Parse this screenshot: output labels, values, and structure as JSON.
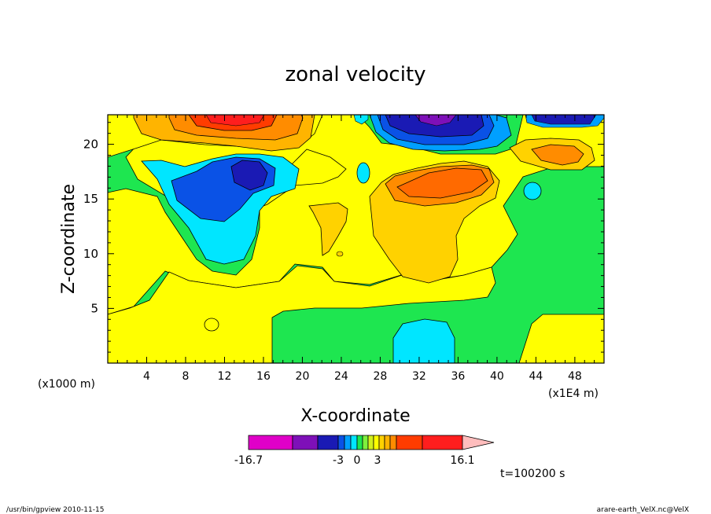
{
  "chart_data": {
    "type": "heatmap",
    "title": "zonal velocity",
    "xlabel": "X-coordinate",
    "ylabel": "Z-coordinate",
    "x_unit_note": "(x1000 m)",
    "x_scale_note": "(x1E4 m)",
    "x_ticks": [
      4,
      8,
      12,
      16,
      20,
      24,
      28,
      32,
      36,
      40,
      44,
      48
    ],
    "y_ticks": [
      5,
      10,
      15,
      20
    ],
    "xlim": [
      0,
      51
    ],
    "ylim": [
      0,
      22.7
    ],
    "grid": false,
    "colorbar": {
      "colors": [
        "#e000c8",
        "#7e10b8",
        "#1a1ab4",
        "#0a52e6",
        "#00a0ff",
        "#00e6ff",
        "#1ee650",
        "#7ef03c",
        "#d2f01e",
        "#ffff00",
        "#ffd200",
        "#ffb400",
        "#ff8c00",
        "#ff3c00",
        "#ff1e1e",
        "#ff8080",
        "#ffbdbd"
      ],
      "tick_labels": [
        "-16.7",
        "-3",
        "0",
        "3",
        "16.1"
      ],
      "min": -16.7,
      "max": 16.1
    },
    "regions": [
      {
        "x": 10,
        "z": 21.5,
        "value": 6
      },
      {
        "x": 12,
        "z": 22,
        "value": 12
      },
      {
        "x": 32,
        "z": 21.5,
        "value": -10
      },
      {
        "x": 34,
        "z": 22.5,
        "value": -14
      },
      {
        "x": 47,
        "z": 22.5,
        "value": -8
      },
      {
        "x": 13,
        "z": 16.5,
        "value": -8
      },
      {
        "x": 14,
        "z": 17.5,
        "value": -10
      },
      {
        "x": 10,
        "z": 14,
        "value": -3
      },
      {
        "x": 35,
        "z": 16.5,
        "value": 7
      },
      {
        "x": 46,
        "z": 19,
        "value": 6
      },
      {
        "x": 43,
        "z": 15.5,
        "value": -3
      },
      {
        "x": 33,
        "z": 12,
        "value": 3
      },
      {
        "x": 23,
        "z": 12,
        "value": 3
      },
      {
        "x": 33,
        "z": 2.5,
        "value": -3
      },
      {
        "x": 28,
        "z": 3,
        "value": -1
      },
      {
        "x": 8,
        "z": 4,
        "value": 1
      }
    ]
  },
  "time_label": "t=100200 s",
  "footer": {
    "left": "/usr/bin/gpview 2010-11-15",
    "right": "arare-earth_VelX.nc@VelX"
  }
}
